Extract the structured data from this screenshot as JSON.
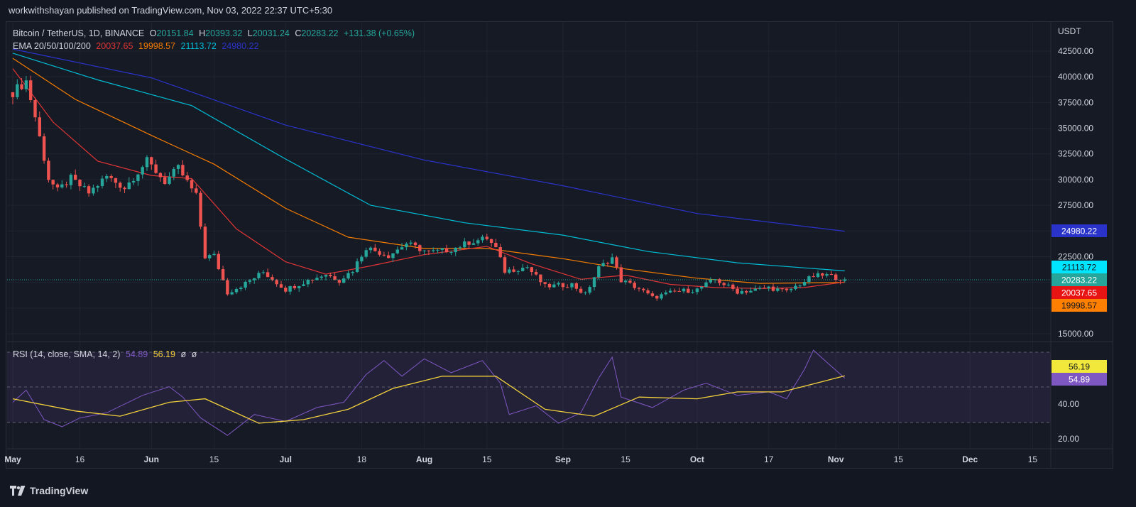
{
  "header": {
    "publisher_line": "workwithshayan published on TradingView.com, Nov 03, 2022 22:37 UTC+5:30"
  },
  "footer": {
    "brand": "TradingView"
  },
  "colors": {
    "up": "#26a69a",
    "down": "#ef5350",
    "ema20": "#e03535",
    "ema50": "#f57c00",
    "ema100": "#00bcd4",
    "ema200": "#2a33c9",
    "rsi": "#7e57c2",
    "rsi_sma": "#f2d03b"
  },
  "legend": {
    "symbol": "Bitcoin / TetherUS, 1D, BINANCE",
    "o_label": "O",
    "o_value": "20151.84",
    "h_label": "H",
    "h_value": "20393.32",
    "l_label": "L",
    "l_value": "20031.24",
    "c_label": "C",
    "c_value": "20283.22",
    "change": "+131.38 (+0.65%)",
    "ema_label": "EMA 20/50/100/200",
    "ema20": "20037.65",
    "ema50": "19998.57",
    "ema100": "21113.72",
    "ema200": "24980.22"
  },
  "rsi_legend": {
    "label": "RSI (14, close, SMA, 14, 2)",
    "rsi_value": "54.89",
    "sma_value": "56.19",
    "extra1": "ø",
    "extra2": "ø"
  },
  "chart_data": [
    {
      "type": "candlestick",
      "title": "Bitcoin / TetherUS, 1D, BINANCE",
      "ylabel": "USDT",
      "ylim": [
        14000,
        44000
      ],
      "y_ticks": [
        "42500.00",
        "40000.00",
        "37500.00",
        "35000.00",
        "32500.00",
        "30000.00",
        "27500.00",
        "22500.00",
        "15000.00"
      ],
      "x_ticks": [
        "May",
        "16",
        "Jun",
        "15",
        "Jul",
        "18",
        "Aug",
        "15",
        "Sep",
        "15",
        "Oct",
        "17",
        "Nov",
        "15",
        "Dec",
        "15"
      ],
      "price_labels": [
        {
          "series": "EMA200",
          "value": "24980.22"
        },
        {
          "series": "EMA100",
          "value": "21113.72"
        },
        {
          "series": "Close",
          "value": "20283.22"
        },
        {
          "series": "EMA20",
          "value": "20037.65"
        },
        {
          "series": "EMA50",
          "value": "19998.57"
        }
      ],
      "weekly_close_path": [
        {
          "x": "2022-05-01",
          "close": 38500
        },
        {
          "x": "2022-05-04",
          "close": 39600
        },
        {
          "x": "2022-05-06",
          "close": 36100
        },
        {
          "x": "2022-05-09",
          "close": 30100
        },
        {
          "x": "2022-05-11",
          "close": 28900
        },
        {
          "x": "2022-05-14",
          "close": 30100
        },
        {
          "x": "2022-05-18",
          "close": 28700
        },
        {
          "x": "2022-05-22",
          "close": 30300
        },
        {
          "x": "2022-05-26",
          "close": 29200
        },
        {
          "x": "2022-05-31",
          "close": 31800
        },
        {
          "x": "2022-06-04",
          "close": 29800
        },
        {
          "x": "2022-06-07",
          "close": 31100
        },
        {
          "x": "2022-06-11",
          "close": 28400
        },
        {
          "x": "2022-06-13",
          "close": 22500
        },
        {
          "x": "2022-06-15",
          "close": 22600
        },
        {
          "x": "2022-06-18",
          "close": 19000
        },
        {
          "x": "2022-06-22",
          "close": 19900
        },
        {
          "x": "2022-06-26",
          "close": 21000
        },
        {
          "x": "2022-07-01",
          "close": 19300
        },
        {
          "x": "2022-07-06",
          "close": 20200
        },
        {
          "x": "2022-07-10",
          "close": 20800
        },
        {
          "x": "2022-07-13",
          "close": 20200
        },
        {
          "x": "2022-07-16",
          "close": 21200
        },
        {
          "x": "2022-07-19",
          "close": 23400
        },
        {
          "x": "2022-07-24",
          "close": 22600
        },
        {
          "x": "2022-07-28",
          "close": 23800
        },
        {
          "x": "2022-08-02",
          "close": 22900
        },
        {
          "x": "2022-08-07",
          "close": 23200
        },
        {
          "x": "2022-08-11",
          "close": 23900
        },
        {
          "x": "2022-08-15",
          "close": 24300
        },
        {
          "x": "2022-08-17",
          "close": 23300
        },
        {
          "x": "2022-08-19",
          "close": 21100
        },
        {
          "x": "2022-08-24",
          "close": 21500
        },
        {
          "x": "2022-08-28",
          "close": 19600
        },
        {
          "x": "2022-09-03",
          "close": 19800
        },
        {
          "x": "2022-09-06",
          "close": 18800
        },
        {
          "x": "2022-09-09",
          "close": 21400
        },
        {
          "x": "2022-09-12",
          "close": 22400
        },
        {
          "x": "2022-09-14",
          "close": 20200
        },
        {
          "x": "2022-09-18",
          "close": 19400
        },
        {
          "x": "2022-09-21",
          "close": 18500
        },
        {
          "x": "2022-09-26",
          "close": 19100
        },
        {
          "x": "2022-10-01",
          "close": 19300
        },
        {
          "x": "2022-10-05",
          "close": 20300
        },
        {
          "x": "2022-10-10",
          "close": 19100
        },
        {
          "x": "2022-10-13",
          "close": 19200
        },
        {
          "x": "2022-10-17",
          "close": 19500
        },
        {
          "x": "2022-10-21",
          "close": 19100
        },
        {
          "x": "2022-10-25",
          "close": 20100
        },
        {
          "x": "2022-10-27",
          "close": 20600
        },
        {
          "x": "2022-10-30",
          "close": 20700
        },
        {
          "x": "2022-11-03",
          "close": 20283
        }
      ],
      "ema20": [
        {
          "x": "2022-05-01",
          "v": 40800
        },
        {
          "x": "2022-05-10",
          "v": 35600
        },
        {
          "x": "2022-05-20",
          "v": 31800
        },
        {
          "x": "2022-06-01",
          "v": 30400
        },
        {
          "x": "2022-06-10",
          "v": 30100
        },
        {
          "x": "2022-06-20",
          "v": 25200
        },
        {
          "x": "2022-07-01",
          "v": 22000
        },
        {
          "x": "2022-07-10",
          "v": 20800
        },
        {
          "x": "2022-07-20",
          "v": 21600
        },
        {
          "x": "2022-08-01",
          "v": 22700
        },
        {
          "x": "2022-08-15",
          "v": 23500
        },
        {
          "x": "2022-08-25",
          "v": 21800
        },
        {
          "x": "2022-09-05",
          "v": 20300
        },
        {
          "x": "2022-09-15",
          "v": 20700
        },
        {
          "x": "2022-09-25",
          "v": 19800
        },
        {
          "x": "2022-10-05",
          "v": 19500
        },
        {
          "x": "2022-10-15",
          "v": 19400
        },
        {
          "x": "2022-10-25",
          "v": 19500
        },
        {
          "x": "2022-11-03",
          "v": 20037
        }
      ],
      "ema50": [
        {
          "x": "2022-05-01",
          "v": 41800
        },
        {
          "x": "2022-05-15",
          "v": 37800
        },
        {
          "x": "2022-06-01",
          "v": 34300
        },
        {
          "x": "2022-06-15",
          "v": 31500
        },
        {
          "x": "2022-07-01",
          "v": 27200
        },
        {
          "x": "2022-07-15",
          "v": 24400
        },
        {
          "x": "2022-08-01",
          "v": 23300
        },
        {
          "x": "2022-08-15",
          "v": 23300
        },
        {
          "x": "2022-09-01",
          "v": 22300
        },
        {
          "x": "2022-09-15",
          "v": 21300
        },
        {
          "x": "2022-10-01",
          "v": 20400
        },
        {
          "x": "2022-10-15",
          "v": 19900
        },
        {
          "x": "2022-11-03",
          "v": 19999
        }
      ],
      "ema100": [
        {
          "x": "2022-05-01",
          "v": 42300
        },
        {
          "x": "2022-05-20",
          "v": 39700
        },
        {
          "x": "2022-06-10",
          "v": 37200
        },
        {
          "x": "2022-07-01",
          "v": 32000
        },
        {
          "x": "2022-07-20",
          "v": 27500
        },
        {
          "x": "2022-08-10",
          "v": 25800
        },
        {
          "x": "2022-09-01",
          "v": 24600
        },
        {
          "x": "2022-09-20",
          "v": 23000
        },
        {
          "x": "2022-10-10",
          "v": 21900
        },
        {
          "x": "2022-11-03",
          "v": 21114
        }
      ],
      "ema200": [
        {
          "x": "2022-05-01",
          "v": 42700
        },
        {
          "x": "2022-06-01",
          "v": 39900
        },
        {
          "x": "2022-07-01",
          "v": 35300
        },
        {
          "x": "2022-08-01",
          "v": 31900
        },
        {
          "x": "2022-09-01",
          "v": 29400
        },
        {
          "x": "2022-10-01",
          "v": 26700
        },
        {
          "x": "2022-11-03",
          "v": 24980
        }
      ]
    },
    {
      "type": "line",
      "title": "RSI (14, close, SMA, 14, 2)",
      "ylim": [
        14,
        82
      ],
      "y_ticks": [
        "40.00",
        "20.00"
      ],
      "price_labels": [
        {
          "series": "SMA",
          "value": "56.19"
        },
        {
          "series": "RSI",
          "value": "54.89"
        }
      ],
      "rsi": [
        {
          "x": "2022-05-01",
          "v": 41
        },
        {
          "x": "2022-05-04",
          "v": 48
        },
        {
          "x": "2022-05-08",
          "v": 31
        },
        {
          "x": "2022-05-12",
          "v": 27
        },
        {
          "x": "2022-05-16",
          "v": 32
        },
        {
          "x": "2022-05-22",
          "v": 35
        },
        {
          "x": "2022-05-30",
          "v": 45
        },
        {
          "x": "2022-06-05",
          "v": 50
        },
        {
          "x": "2022-06-08",
          "v": 44
        },
        {
          "x": "2022-06-12",
          "v": 32
        },
        {
          "x": "2022-06-18",
          "v": 22
        },
        {
          "x": "2022-06-24",
          "v": 34
        },
        {
          "x": "2022-07-01",
          "v": 30
        },
        {
          "x": "2022-07-08",
          "v": 38
        },
        {
          "x": "2022-07-14",
          "v": 41
        },
        {
          "x": "2022-07-19",
          "v": 57
        },
        {
          "x": "2022-07-23",
          "v": 65
        },
        {
          "x": "2022-07-27",
          "v": 56
        },
        {
          "x": "2022-08-01",
          "v": 66
        },
        {
          "x": "2022-08-07",
          "v": 58
        },
        {
          "x": "2022-08-14",
          "v": 65
        },
        {
          "x": "2022-08-18",
          "v": 52
        },
        {
          "x": "2022-08-20",
          "v": 34
        },
        {
          "x": "2022-08-26",
          "v": 39
        },
        {
          "x": "2022-08-31",
          "v": 29
        },
        {
          "x": "2022-09-05",
          "v": 35
        },
        {
          "x": "2022-09-09",
          "v": 55
        },
        {
          "x": "2022-09-12",
          "v": 67
        },
        {
          "x": "2022-09-14",
          "v": 44
        },
        {
          "x": "2022-09-21",
          "v": 38
        },
        {
          "x": "2022-09-28",
          "v": 48
        },
        {
          "x": "2022-10-03",
          "v": 52
        },
        {
          "x": "2022-10-10",
          "v": 45
        },
        {
          "x": "2022-10-17",
          "v": 47
        },
        {
          "x": "2022-10-21",
          "v": 43
        },
        {
          "x": "2022-10-25",
          "v": 60
        },
        {
          "x": "2022-10-27",
          "v": 71
        },
        {
          "x": "2022-10-30",
          "v": 64
        },
        {
          "x": "2022-11-03",
          "v": 54.89
        }
      ],
      "sma": [
        {
          "x": "2022-05-01",
          "v": 43
        },
        {
          "x": "2022-05-15",
          "v": 36
        },
        {
          "x": "2022-05-25",
          "v": 33
        },
        {
          "x": "2022-06-05",
          "v": 41
        },
        {
          "x": "2022-06-13",
          "v": 43
        },
        {
          "x": "2022-06-25",
          "v": 29
        },
        {
          "x": "2022-07-05",
          "v": 31
        },
        {
          "x": "2022-07-15",
          "v": 37
        },
        {
          "x": "2022-07-25",
          "v": 49
        },
        {
          "x": "2022-08-05",
          "v": 56
        },
        {
          "x": "2022-08-17",
          "v": 56
        },
        {
          "x": "2022-08-28",
          "v": 37
        },
        {
          "x": "2022-09-08",
          "v": 33
        },
        {
          "x": "2022-09-18",
          "v": 44
        },
        {
          "x": "2022-10-01",
          "v": 43
        },
        {
          "x": "2022-10-10",
          "v": 47
        },
        {
          "x": "2022-10-20",
          "v": 47
        },
        {
          "x": "2022-11-03",
          "v": 56.19
        }
      ]
    }
  ]
}
